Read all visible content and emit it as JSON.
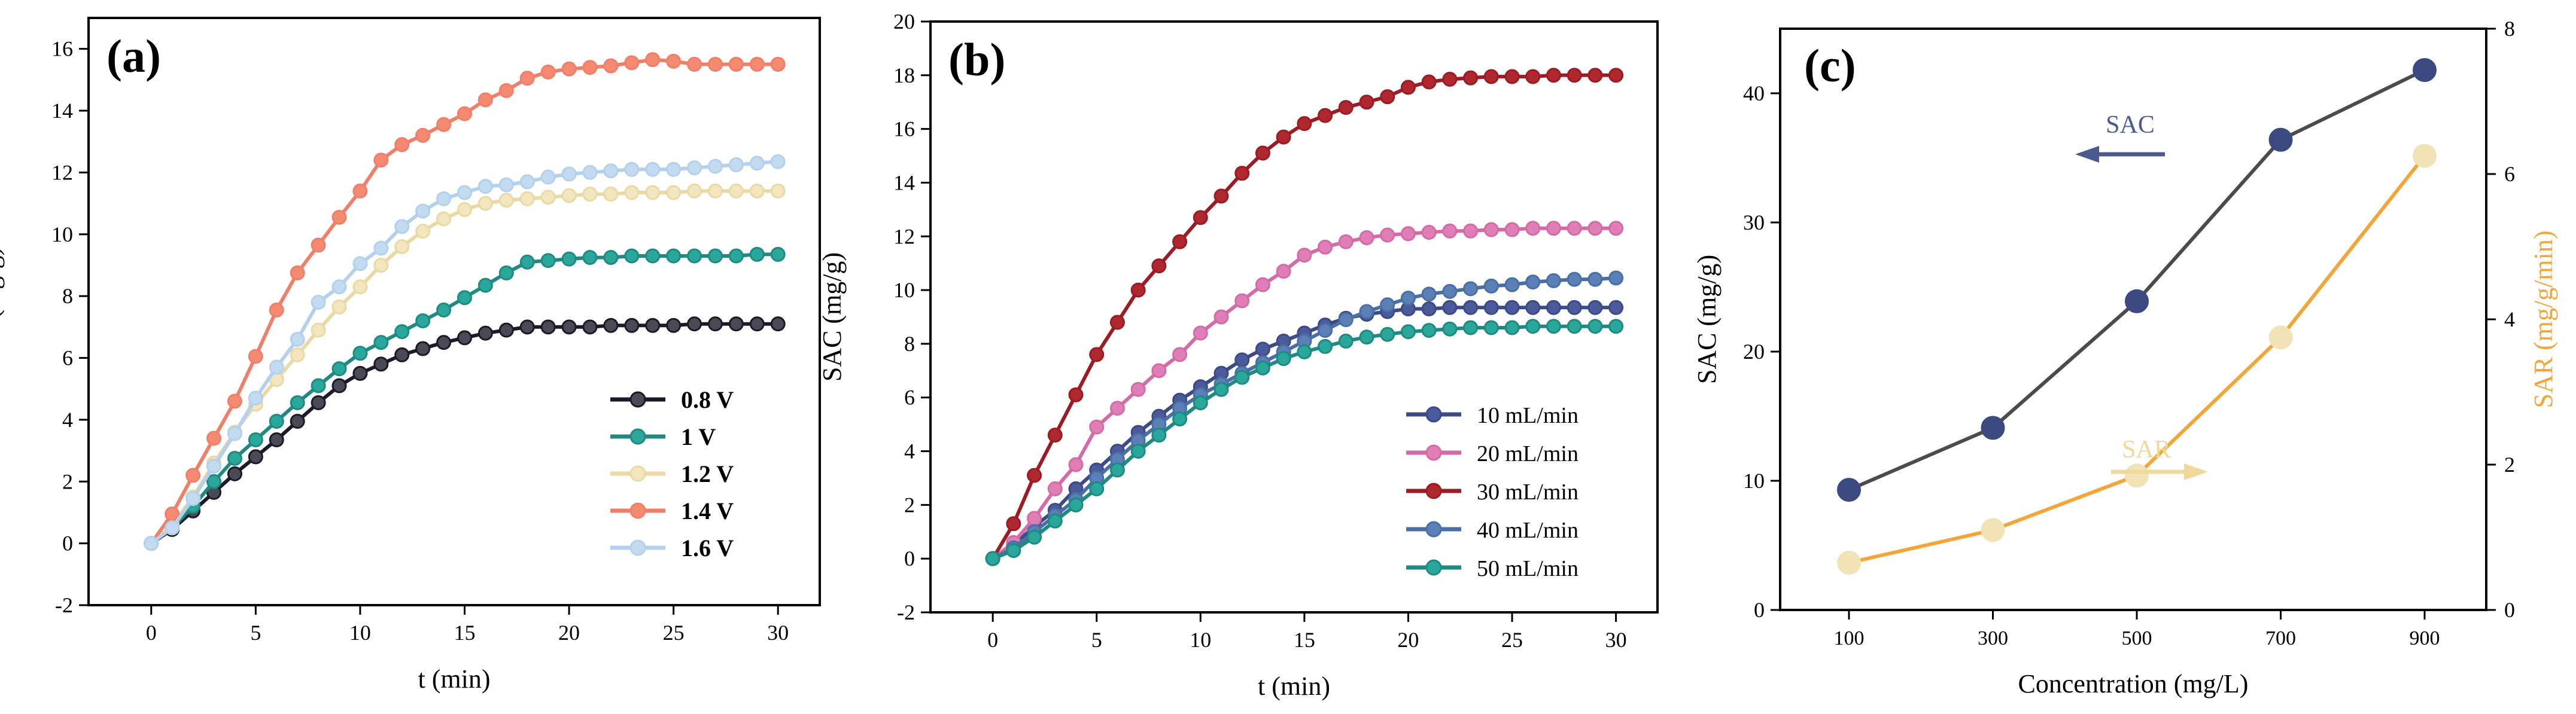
{
  "chart_data": [
    {
      "panel_label": "(a)",
      "type": "line",
      "xlabel": "t (min)",
      "ylabel": "SAC (mg/g)",
      "xlim": [
        -3,
        32
      ],
      "ylim": [
        -2,
        17
      ],
      "x_ticks": [
        0,
        5,
        10,
        15,
        20,
        25,
        30
      ],
      "x_tick_labels": [
        "0",
        "5",
        "10",
        "15",
        "20",
        "25",
        "30"
      ],
      "y_ticks": [
        -2,
        0,
        2,
        4,
        6,
        8,
        10,
        12,
        14,
        16
      ],
      "y_tick_labels": [
        "-2",
        "0",
        "2",
        "4",
        "6",
        "8",
        "10",
        "12",
        "14",
        "16"
      ],
      "legend_position": "bottom-right",
      "x": [
        0,
        1,
        2,
        3,
        4,
        5,
        6,
        7,
        8,
        9,
        10,
        11,
        12,
        13,
        14,
        15,
        16,
        17,
        18,
        19,
        20,
        21,
        22,
        23,
        24,
        25,
        26,
        27,
        28,
        29,
        30
      ],
      "series": [
        {
          "name": "0.8 V",
          "color": "#1a1a2a",
          "fill": "#4a4a55",
          "values": [
            0,
            0.45,
            1.05,
            1.65,
            2.25,
            2.8,
            3.35,
            3.95,
            4.55,
            5.1,
            5.5,
            5.8,
            6.1,
            6.3,
            6.5,
            6.65,
            6.8,
            6.9,
            7.0,
            7.0,
            7.0,
            7.0,
            7.05,
            7.05,
            7.05,
            7.05,
            7.1,
            7.1,
            7.1,
            7.1,
            7.1
          ]
        },
        {
          "name": "1 V",
          "color": "#1f8a82",
          "fill": "#2aa79b",
          "values": [
            0,
            0.5,
            1.2,
            2.0,
            2.75,
            3.35,
            3.95,
            4.55,
            5.1,
            5.65,
            6.15,
            6.5,
            6.85,
            7.2,
            7.55,
            7.95,
            8.35,
            8.75,
            9.1,
            9.15,
            9.2,
            9.25,
            9.25,
            9.3,
            9.3,
            9.3,
            9.3,
            9.3,
            9.3,
            9.35,
            9.35
          ]
        },
        {
          "name": "1.2 V",
          "color": "#ead9a4",
          "fill": "#f1e6bd",
          "values": [
            0,
            0.6,
            1.5,
            2.6,
            3.6,
            4.5,
            5.3,
            6.1,
            6.9,
            7.65,
            8.3,
            9.0,
            9.6,
            10.1,
            10.5,
            10.8,
            11.0,
            11.1,
            11.15,
            11.2,
            11.25,
            11.3,
            11.3,
            11.35,
            11.35,
            11.35,
            11.4,
            11.4,
            11.4,
            11.4,
            11.4
          ]
        },
        {
          "name": "1.4 V",
          "color": "#f07f6a",
          "fill": "#f58a73",
          "values": [
            0,
            0.95,
            2.2,
            3.4,
            4.6,
            6.05,
            7.55,
            8.75,
            9.65,
            10.55,
            11.4,
            12.4,
            12.9,
            13.2,
            13.55,
            13.9,
            14.35,
            14.65,
            15.05,
            15.25,
            15.35,
            15.4,
            15.45,
            15.55,
            15.65,
            15.6,
            15.5,
            15.5,
            15.5,
            15.5,
            15.5
          ]
        },
        {
          "name": "1.6 V",
          "color": "#b3d1ec",
          "fill": "#c3dbf1",
          "values": [
            0,
            0.5,
            1.45,
            2.5,
            3.55,
            4.7,
            5.7,
            6.6,
            7.8,
            8.3,
            9.05,
            9.55,
            10.25,
            10.75,
            11.15,
            11.35,
            11.55,
            11.6,
            11.7,
            11.85,
            11.95,
            12.0,
            12.05,
            12.1,
            12.1,
            12.1,
            12.15,
            12.2,
            12.25,
            12.3,
            12.35
          ]
        }
      ]
    },
    {
      "panel_label": "(b)",
      "type": "line",
      "xlabel": "t (min)",
      "ylabel": "SAC (mg/g)",
      "xlim": [
        -3,
        32
      ],
      "ylim": [
        -2,
        20
      ],
      "x_ticks": [
        0,
        5,
        10,
        15,
        20,
        25,
        30
      ],
      "x_tick_labels": [
        "0",
        "5",
        "10",
        "15",
        "20",
        "25",
        "30"
      ],
      "y_ticks": [
        -2,
        0,
        2,
        4,
        6,
        8,
        10,
        12,
        14,
        16,
        18,
        20
      ],
      "y_tick_labels": [
        "-2",
        "0",
        "2",
        "4",
        "6",
        "8",
        "10",
        "12",
        "14",
        "16",
        "18",
        "20"
      ],
      "legend_position": "bottom-right",
      "x": [
        0,
        1,
        2,
        3,
        4,
        5,
        6,
        7,
        8,
        9,
        10,
        11,
        12,
        13,
        14,
        15,
        16,
        17,
        18,
        19,
        20,
        21,
        22,
        23,
        24,
        25,
        26,
        27,
        28,
        29,
        30
      ],
      "series": [
        {
          "name": "10 mL/min",
          "color": "#3c4a85",
          "fill": "#4a5a9a",
          "values": [
            0,
            0.5,
            1.2,
            1.8,
            2.6,
            3.3,
            4.0,
            4.7,
            5.3,
            5.9,
            6.4,
            6.9,
            7.4,
            7.8,
            8.1,
            8.4,
            8.7,
            8.95,
            9.1,
            9.2,
            9.3,
            9.3,
            9.35,
            9.35,
            9.35,
            9.35,
            9.35,
            9.35,
            9.35,
            9.35,
            9.35
          ]
        },
        {
          "name": "20 mL/min",
          "color": "#d46aa6",
          "fill": "#e07fb7",
          "values": [
            0,
            0.6,
            1.5,
            2.6,
            3.5,
            4.9,
            5.6,
            6.3,
            7.0,
            7.6,
            8.4,
            9.0,
            9.6,
            10.2,
            10.7,
            11.3,
            11.6,
            11.8,
            11.95,
            12.05,
            12.1,
            12.15,
            12.2,
            12.2,
            12.25,
            12.25,
            12.3,
            12.3,
            12.3,
            12.3,
            12.3
          ]
        },
        {
          "name": "30 mL/min",
          "color": "#9b1c24",
          "fill": "#b0282f",
          "values": [
            0,
            1.3,
            3.1,
            4.6,
            6.1,
            7.6,
            8.8,
            10.0,
            10.9,
            11.8,
            12.7,
            13.5,
            14.35,
            15.1,
            15.7,
            16.2,
            16.5,
            16.8,
            17.0,
            17.2,
            17.55,
            17.75,
            17.85,
            17.9,
            17.95,
            17.95,
            17.95,
            18.0,
            18.0,
            18.0,
            18.0
          ]
        },
        {
          "name": "40 mL/min",
          "color": "#4a6fa5",
          "fill": "#5b80b6",
          "values": [
            0,
            0.4,
            1.0,
            1.6,
            2.2,
            3.0,
            3.7,
            4.4,
            5.0,
            5.6,
            6.1,
            6.5,
            6.9,
            7.3,
            7.7,
            8.1,
            8.5,
            8.9,
            9.2,
            9.45,
            9.7,
            9.85,
            9.95,
            10.05,
            10.15,
            10.2,
            10.3,
            10.35,
            10.4,
            10.4,
            10.45
          ]
        },
        {
          "name": "50 mL/min",
          "color": "#1f8a82",
          "fill": "#2aa79b",
          "values": [
            0,
            0.3,
            0.8,
            1.4,
            2.0,
            2.6,
            3.3,
            4.0,
            4.6,
            5.2,
            5.8,
            6.3,
            6.75,
            7.1,
            7.45,
            7.7,
            7.9,
            8.1,
            8.25,
            8.35,
            8.45,
            8.5,
            8.55,
            8.6,
            8.6,
            8.6,
            8.65,
            8.65,
            8.65,
            8.65,
            8.65
          ]
        }
      ]
    },
    {
      "panel_label": "(c)",
      "type": "line",
      "xlabel": "Concentration (mg/L)",
      "ylabel": "SAC (mg/g)",
      "ylabel_right": "SAR (mg/g/min)",
      "categories": [
        "100",
        "300",
        "500",
        "700",
        "900"
      ],
      "ylim": [
        0,
        45
      ],
      "y_ticks": [
        0,
        10,
        20,
        30,
        40
      ],
      "y_tick_labels": [
        "0",
        "10",
        "20",
        "30",
        "40"
      ],
      "ylim_right": [
        0,
        8
      ],
      "y_ticks_right": [
        0,
        2,
        4,
        6,
        8
      ],
      "y_tick_labels_right": [
        "0",
        "2",
        "4",
        "6",
        "8"
      ],
      "series": [
        {
          "name": "SAC",
          "axis": "left",
          "color": "#4b4b4b",
          "marker_color": "#3b4a80",
          "values": [
            9.3,
            14.1,
            23.9,
            36.4,
            41.8
          ]
        },
        {
          "name": "SAR",
          "axis": "right",
          "color": "#f3a53a",
          "marker_color": "#f1e3b6",
          "values": [
            0.65,
            1.1,
            1.85,
            3.75,
            6.25
          ]
        }
      ],
      "annotations": [
        {
          "text": "SAC",
          "arrow": "left",
          "color": "#4a5a90"
        },
        {
          "text": "SAR",
          "arrow": "right",
          "color": "#f0d89a"
        }
      ]
    }
  ]
}
